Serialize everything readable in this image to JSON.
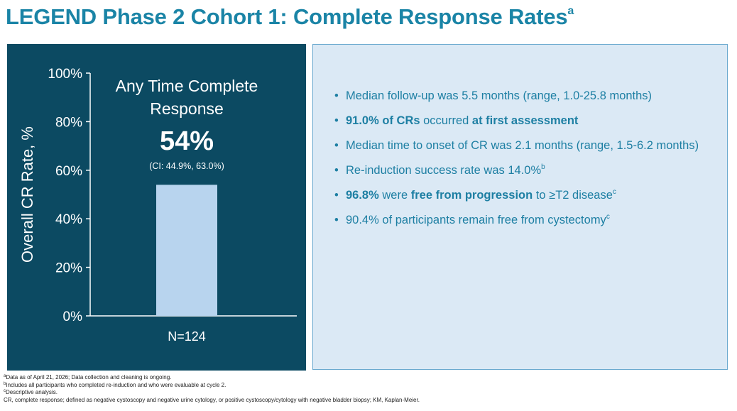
{
  "title": {
    "text": "LEGEND Phase 2 Cohort 1: Complete Response Rates",
    "sup": "a"
  },
  "chart_data": {
    "type": "bar",
    "categories": [
      "N=124"
    ],
    "values": [
      54
    ],
    "ylabel": "Overall CR Rate, %",
    "ylim": [
      0,
      100
    ],
    "yticks": [
      0,
      20,
      40,
      60,
      80,
      100
    ],
    "ytick_labels": [
      "0%",
      "20%",
      "40%",
      "60%",
      "80%",
      "100%"
    ],
    "annotation": {
      "line1": "Any Time Complete",
      "line2": "Response",
      "value": "54%",
      "ci": "(CI: 44.9%, 63.0%)"
    },
    "colors": {
      "panel": "#0c4a62",
      "bar": "#b8d4ee",
      "text": "#ffffff"
    }
  },
  "bullets": [
    {
      "parts": [
        {
          "text": "Median follow-up was 5.5 months (range, 1.0-25.8 months)"
        }
      ]
    },
    {
      "parts": [
        {
          "text": "91.0% of CRs",
          "bold": true
        },
        {
          "text": " occurred "
        },
        {
          "text": "at first assessment",
          "bold": true
        }
      ]
    },
    {
      "parts": [
        {
          "text": "Median time to onset of CR was 2.1 months (range, 1.5-6.2 months)"
        }
      ]
    },
    {
      "parts": [
        {
          "text": "Re-induction success rate was 14.0%"
        },
        {
          "text": "b",
          "sup": true
        }
      ]
    },
    {
      "parts": [
        {
          "text": "96.8%",
          "bold": true
        },
        {
          "text": " were "
        },
        {
          "text": "free from progression",
          "bold": true
        },
        {
          "text": " to ≥T2 disease"
        },
        {
          "text": "c",
          "sup": true
        }
      ]
    },
    {
      "parts": [
        {
          "text": "90.4% of participants remain free from cystectomy"
        },
        {
          "text": "c",
          "sup": true
        }
      ]
    }
  ],
  "footnotes": [
    {
      "sup": "a",
      "text": "Data as of April 21, 2026; Data collection and cleaning is ongoing."
    },
    {
      "sup": "b",
      "text": "Includes all participants who completed re-induction and who were evaluable at cycle 2."
    },
    {
      "sup": "c",
      "text": "Descriptive analysis."
    },
    {
      "sup": "",
      "text": "CR, complete response; defined as negative cystoscopy and negative urine cytology, or positive cystoscopy/cytology with negative bladder biopsy; KM, Kaplan-Meier."
    }
  ]
}
